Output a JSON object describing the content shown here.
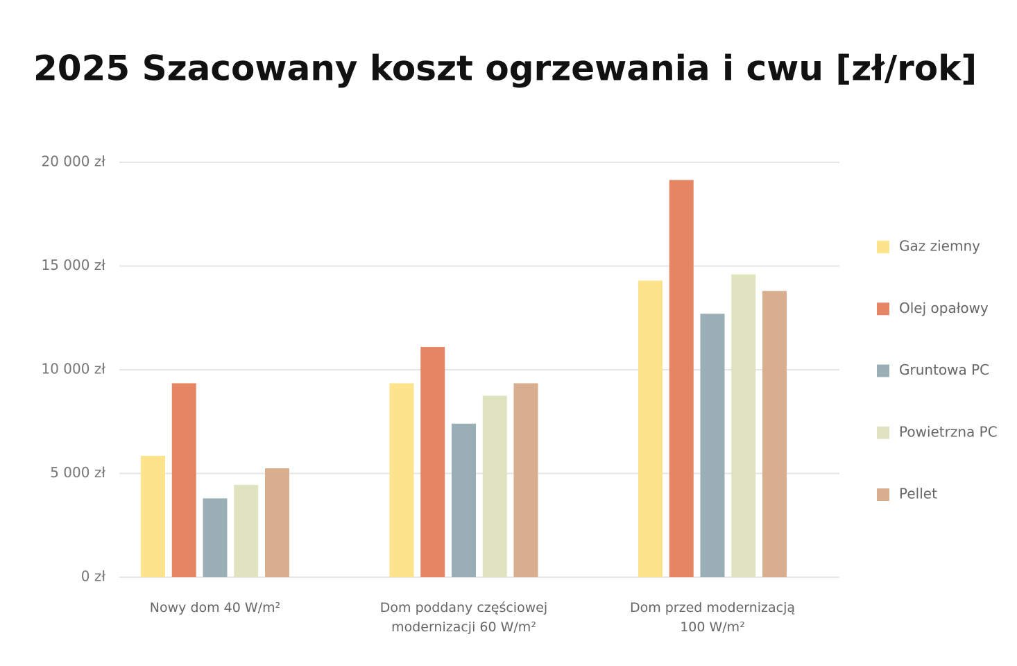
{
  "chart_data": {
    "type": "bar",
    "title": "2025 Szacowany koszt ogrzewania i cwu [zł/rok]",
    "categories": [
      "Nowy dom 40 W/m²",
      "Dom poddany częściowej modernizacji 60 W/m²",
      "Dom przed modernizacją 100 W/m²"
    ],
    "series": [
      {
        "name": "Gaz ziemny",
        "color": "#fde38b",
        "values": [
          5850,
          9350,
          14300
        ]
      },
      {
        "name": "Olej opałowy",
        "color": "#e68563",
        "values": [
          9350,
          11100,
          19150
        ]
      },
      {
        "name": "Gruntowa PC",
        "color": "#9aafb5",
        "values": [
          3800,
          7400,
          12700
        ]
      },
      {
        "name": "Powietrzna PC",
        "color": "#dfe3bf",
        "values": [
          4450,
          8750,
          14600
        ]
      },
      {
        "name": "Pellet",
        "color": "#d8ae8f",
        "values": [
          5250,
          9350,
          13800
        ]
      }
    ],
    "ylim": [
      0,
      20000
    ],
    "yticks": [
      {
        "value": 0,
        "label": "0 zł"
      },
      {
        "value": 5000,
        "label": "5 000 zł"
      },
      {
        "value": 10000,
        "label": "10 000 zł"
      },
      {
        "value": 15000,
        "label": "15 000 zł"
      },
      {
        "value": 20000,
        "label": "20 000 zł"
      }
    ],
    "grid": true,
    "legend": "right"
  }
}
